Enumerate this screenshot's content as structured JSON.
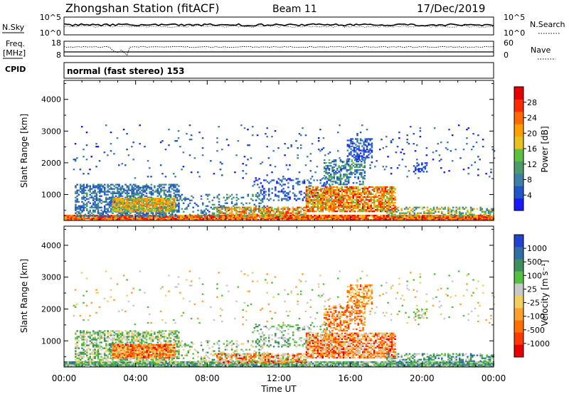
{
  "header": {
    "station": "Zhongshan Station (fitACF)",
    "beam": "Beam 11",
    "date": "17/Dec/2019"
  },
  "strip1": {
    "left_label": "N.Sky",
    "left_ticks": [
      "10^5",
      "10^0"
    ],
    "right_label": "N.Search",
    "right_ticks": [
      "10^5",
      "10^0"
    ]
  },
  "strip2": {
    "left_label_1": "Freq.",
    "left_label_2": "[MHz]",
    "left_ticks": [
      "18",
      "8"
    ],
    "right_label": "Nave",
    "right_ticks": [
      "60",
      "0"
    ]
  },
  "cpid": {
    "label": "CPID",
    "text": "normal (fast stereo) 153"
  },
  "x_axis": {
    "label": "Time UT",
    "ticks": [
      "00:00",
      "04:00",
      "08:00",
      "12:00",
      "16:00",
      "20:00",
      "00:00"
    ]
  },
  "chart_data": [
    {
      "type": "heatmap",
      "name": "power",
      "ylabel": "Slant Range [km]",
      "ylim": [
        180,
        4600
      ],
      "yticks": [
        1000,
        2000,
        3000,
        4000
      ],
      "xlim_hours": [
        0,
        24
      ],
      "colorbar": {
        "label": "Power [dB]",
        "ticks": [
          "4",
          "8",
          "12",
          "16",
          "20",
          "24",
          "28"
        ],
        "colors": [
          "#1a1aff",
          "#2255c8",
          "#3f7fa6",
          "#4d9a6a",
          "#5cc040",
          "#e8c020",
          "#ffa000",
          "#ff6a00",
          "#ff2a00",
          "#e60000"
        ]
      }
    },
    {
      "type": "heatmap",
      "name": "velocity",
      "ylabel": "Slant Range [km]",
      "ylim": [
        180,
        4600
      ],
      "yticks": [
        1000,
        2000,
        3000,
        4000
      ],
      "xlim_hours": [
        0,
        24
      ],
      "colorbar": {
        "label": "Velocity [m s⁻¹]",
        "ticks": [
          "1000",
          "500",
          "100",
          "25",
          "-25",
          "-100",
          "-500",
          "-1000"
        ],
        "colors": [
          "#2244cc",
          "#2f6ea8",
          "#3f8f5e",
          "#55c040",
          "#c8c8c8",
          "#f0d060",
          "#ffa030",
          "#ff7000",
          "#ff3a00",
          "#e60000"
        ]
      }
    }
  ]
}
